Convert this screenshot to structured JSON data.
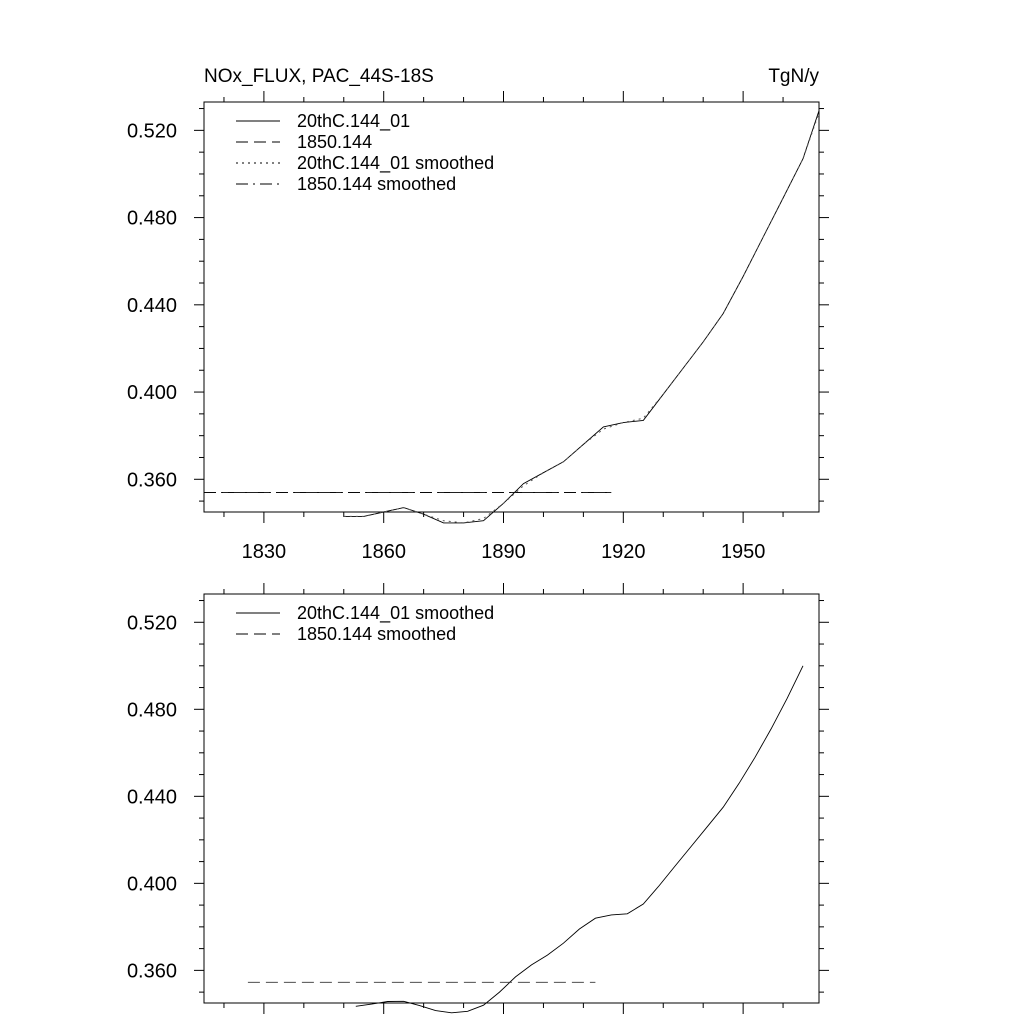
{
  "header": {
    "title": "NOx_FLUX, PAC_44S-18S",
    "units": "TgN/y"
  },
  "chart_data": [
    {
      "type": "line",
      "xlim": [
        1815,
        1969
      ],
      "ylim": [
        0.345,
        0.533
      ],
      "x_ticks": [
        1830,
        1860,
        1890,
        1920,
        1950
      ],
      "x_tick_labels": [
        "1830",
        "1860",
        "1890",
        "1920",
        "1950"
      ],
      "y_ticks": [
        0.36,
        0.4,
        0.44,
        0.48,
        0.52
      ],
      "y_tick_labels": [
        "0.360",
        "0.400",
        "0.440",
        "0.480",
        "0.520"
      ],
      "legend": [
        {
          "label": "20thC.144_01",
          "style": "solid"
        },
        {
          "label": "1850.144",
          "style": "dashed"
        },
        {
          "label": "20thC.144_01 smoothed",
          "style": "dotted"
        },
        {
          "label": "1850.144 smoothed",
          "style": "dashdot"
        }
      ],
      "series": [
        {
          "name": "20thC.144_01",
          "style": "solid",
          "x": [
            1850,
            1855,
            1860,
            1865,
            1870,
            1875,
            1880,
            1885,
            1890,
            1895,
            1900,
            1905,
            1910,
            1915,
            1920,
            1925,
            1930,
            1935,
            1940,
            1945,
            1950,
            1955,
            1960,
            1965,
            1969
          ],
          "y": [
            0.343,
            0.343,
            0.345,
            0.347,
            0.344,
            0.34,
            0.34,
            0.341,
            0.349,
            0.358,
            0.363,
            0.368,
            0.376,
            0.384,
            0.386,
            0.387,
            0.399,
            0.411,
            0.423,
            0.436,
            0.453,
            0.471,
            0.489,
            0.507,
            0.529
          ]
        },
        {
          "name": "1850.144",
          "style": "dashed",
          "x": [
            1815,
            1917
          ],
          "y": [
            0.354,
            0.354
          ]
        },
        {
          "name": "20thC.144_01 smoothed",
          "style": "dotted",
          "x": [
            1850,
            1855,
            1860,
            1865,
            1870,
            1875,
            1880,
            1885,
            1890,
            1895,
            1900,
            1905,
            1910,
            1915,
            1920,
            1925,
            1930,
            1935,
            1940,
            1945,
            1950,
            1955,
            1960,
            1965,
            1969
          ],
          "y": [
            0.343,
            0.343,
            0.345,
            0.347,
            0.344,
            0.341,
            0.34,
            0.342,
            0.349,
            0.357,
            0.363,
            0.368,
            0.376,
            0.383,
            0.386,
            0.388,
            0.399,
            0.411,
            0.423,
            0.436,
            0.453,
            0.471,
            0.489,
            0.507,
            0.528
          ]
        },
        {
          "name": "1850.144 smoothed",
          "style": "dashdot",
          "x": [
            1815,
            1917
          ],
          "y": [
            0.354,
            0.354
          ]
        }
      ]
    },
    {
      "type": "line",
      "xlim": [
        1815,
        1969
      ],
      "ylim": [
        0.345,
        0.533
      ],
      "x_ticks": [
        1830,
        1860,
        1890,
        1920,
        1950
      ],
      "y_ticks": [
        0.36,
        0.4,
        0.44,
        0.48,
        0.52
      ],
      "y_tick_labels": [
        "0.360",
        "0.400",
        "0.440",
        "0.480",
        "0.520"
      ],
      "legend": [
        {
          "label": "20thC.144_01 smoothed",
          "style": "solid"
        },
        {
          "label": "1850.144 smoothed",
          "style": "dashed"
        }
      ],
      "series": [
        {
          "name": "20thC.144_01 smoothed",
          "style": "solid",
          "x": [
            1853,
            1857,
            1861,
            1865,
            1869,
            1873,
            1877,
            1881,
            1885,
            1889,
            1893,
            1897,
            1901,
            1905,
            1909,
            1913,
            1917,
            1921,
            1925,
            1929,
            1933,
            1937,
            1941,
            1945,
            1949,
            1953,
            1957,
            1961,
            1965
          ],
          "y": [
            0.3435,
            0.3445,
            0.3457,
            0.3458,
            0.3438,
            0.3415,
            0.3405,
            0.3412,
            0.344,
            0.35,
            0.357,
            0.3625,
            0.367,
            0.3725,
            0.379,
            0.384,
            0.3855,
            0.386,
            0.3905,
            0.399,
            0.408,
            0.417,
            0.426,
            0.435,
            0.446,
            0.458,
            0.471,
            0.485,
            0.5
          ]
        },
        {
          "name": "1850.144 smoothed",
          "style": "dashed",
          "x": [
            1826,
            1913
          ],
          "y": [
            0.3545,
            0.3545
          ]
        }
      ]
    }
  ]
}
